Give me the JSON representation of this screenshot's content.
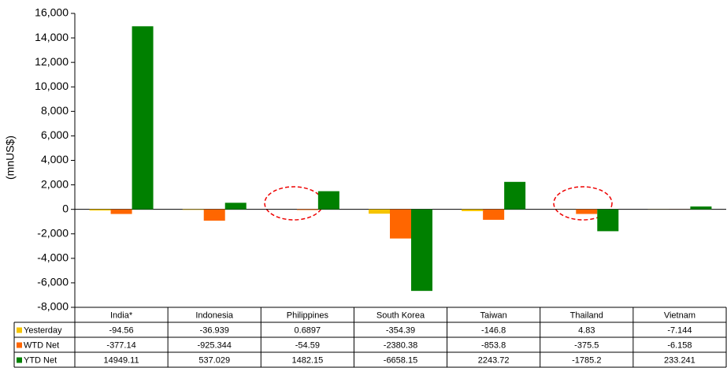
{
  "chart_data": {
    "type": "bar",
    "ylabel": "(mnUS$)",
    "categories": [
      "India*",
      "Indonesia",
      "Philippines",
      "South Korea",
      "Taiwan",
      "Thailand",
      "Vietnam"
    ],
    "series": [
      {
        "name": "Yesterday",
        "color": "#f5c400",
        "values": [
          -94.56,
          -36.939,
          0.6897,
          -354.39,
          -146.8,
          4.83,
          -7.144
        ]
      },
      {
        "name": "WTD Net",
        "color": "#ff6600",
        "values": [
          -377.14,
          -925.344,
          -54.59,
          -2380.38,
          -853.8,
          -375.5,
          -6.158
        ]
      },
      {
        "name": "YTD Net",
        "color": "#008000",
        "values": [
          14949.11,
          537.029,
          1482.15,
          -6658.15,
          2243.72,
          -1785.2,
          233.241
        ]
      }
    ],
    "ylim": [
      -8000,
      16000
    ],
    "yticks": [
      {
        "value": -8000,
        "label": "-8,000"
      },
      {
        "value": -6000,
        "label": "-6,000"
      },
      {
        "value": -4000,
        "label": "-4,000"
      },
      {
        "value": -2000,
        "label": "-2,000"
      },
      0,
      {
        "value": 2000,
        "label": "2,000"
      },
      {
        "value": 4000,
        "label": "4,000"
      },
      {
        "value": 6000,
        "label": "6,000"
      },
      {
        "value": 8000,
        "label": "8,000"
      },
      {
        "value": 10000,
        "label": "10,000"
      },
      {
        "value": 12000,
        "label": "12,000"
      },
      {
        "value": 14000,
        "label": "14,000"
      },
      {
        "value": 16000,
        "label": "16,000"
      }
    ],
    "grid": false
  }
}
